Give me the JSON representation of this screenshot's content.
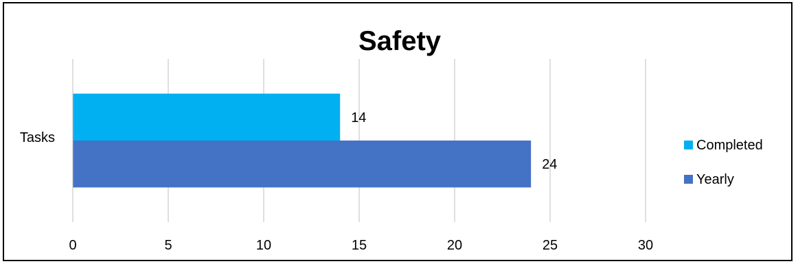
{
  "chart_data": {
    "type": "bar",
    "orientation": "horizontal",
    "title": "Safety",
    "categories": [
      "Tasks"
    ],
    "series": [
      {
        "name": "Completed",
        "values": [
          14
        ],
        "color": "#00b0f0"
      },
      {
        "name": "Yearly",
        "values": [
          24
        ],
        "color": "#4472c4"
      }
    ],
    "xlim": [
      0,
      30
    ],
    "xticks": [
      0,
      5,
      10,
      15,
      20,
      25,
      30
    ],
    "grid": "vertical",
    "legend": "right",
    "data_labels": true
  }
}
